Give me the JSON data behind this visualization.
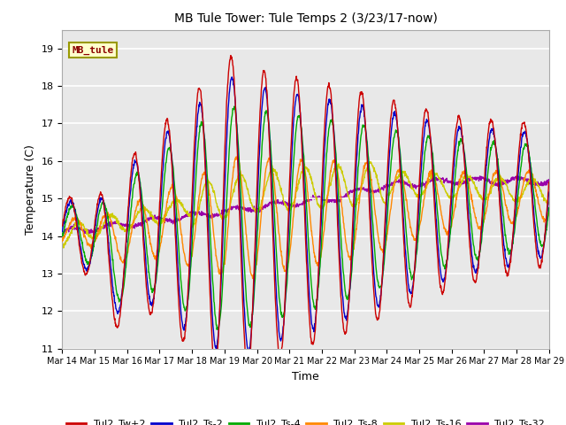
{
  "title": "MB Tule Tower: Tule Temps 2 (3/23/17-now)",
  "xlabel": "Time",
  "ylabel": "Temperature (C)",
  "ylim": [
    11.0,
    19.5
  ],
  "yticks": [
    11.0,
    12.0,
    13.0,
    14.0,
    15.0,
    16.0,
    17.0,
    18.0,
    19.0
  ],
  "background_color": "#e8e8e8",
  "series_colors": {
    "Tul2_Tw+2": "#cc0000",
    "Tul2_Ts-2": "#0000cc",
    "Tul2_Ts-4": "#00aa00",
    "Tul2_Ts-8": "#ff8800",
    "Tul2_Ts-16": "#cccc00",
    "Tul2_Ts-32": "#9900aa"
  },
  "legend_label": "MB_tule",
  "x_tick_labels": [
    "Mar 14",
    "Mar 15",
    "Mar 16",
    "Mar 17",
    "Mar 18",
    "Mar 19",
    "Mar 20",
    "Mar 21",
    "Mar 22",
    "Mar 23",
    "Mar 24",
    "Mar 25",
    "Mar 26",
    "Mar 27",
    "Mar 28",
    "Mar 29"
  ],
  "figsize": [
    6.4,
    4.8
  ],
  "dpi": 100
}
